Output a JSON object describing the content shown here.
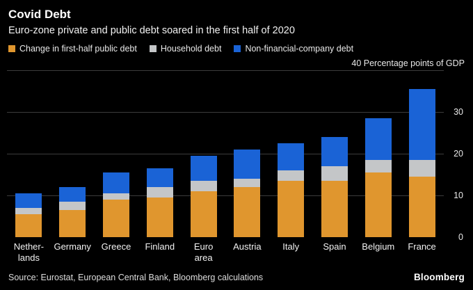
{
  "header": {
    "title": "Covid Debt",
    "subtitle": "Euro-zone private and public debt soared in the first half of 2020"
  },
  "legend": [
    {
      "label": "Change in first-half public debt",
      "color": "#e0962e"
    },
    {
      "label": "Household debt",
      "color": "#c4c6c8"
    },
    {
      "label": "Non-financial-company debt",
      "color": "#1a63d6"
    }
  ],
  "axis_note": "40 Percentage points of GDP",
  "source": "Source: Eurostat, European Central Bank, Bloomberg calculations",
  "brand": "Bloomberg",
  "chart_data": {
    "type": "bar",
    "stacked": true,
    "title": "Covid Debt",
    "subtitle": "Euro-zone private and public debt soared in the first half of 2020",
    "ylabel": "Percentage points of GDP",
    "ylim": [
      0,
      40
    ],
    "yticks": [
      0,
      10,
      20,
      30,
      40
    ],
    "grid": true,
    "legend_position": "top",
    "categories": [
      "Nether-\nlands",
      "Germany",
      "Greece",
      "Finland",
      "Euro\narea",
      "Austria",
      "Italy",
      "Spain",
      "Belgium",
      "France"
    ],
    "series": [
      {
        "name": "Change in first-half public debt",
        "color": "#e0962e",
        "values": [
          5.5,
          6.5,
          9,
          9.5,
          11,
          12,
          13.5,
          13.5,
          15.5,
          14.5
        ]
      },
      {
        "name": "Household debt",
        "color": "#c4c6c8",
        "values": [
          1.5,
          2,
          1.5,
          2.5,
          2.5,
          2,
          2.5,
          3.5,
          3,
          4
        ]
      },
      {
        "name": "Non-financial-company debt",
        "color": "#1a63d6",
        "values": [
          3.5,
          3.5,
          5,
          4.5,
          6,
          7,
          6.5,
          7,
          10,
          17
        ]
      }
    ]
  }
}
